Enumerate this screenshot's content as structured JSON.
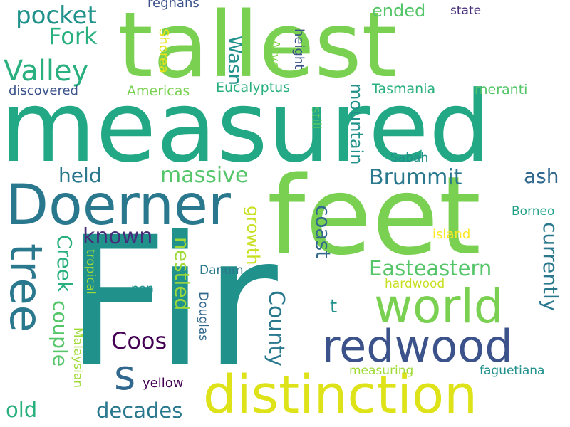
{
  "words": [
    {
      "text": "Fir",
      "color": "#21918c"
    },
    {
      "text": "measured",
      "color": "#22a884"
    },
    {
      "text": "feet",
      "color": "#7ad151"
    },
    {
      "text": "tallest",
      "color": "#7ad151"
    },
    {
      "text": "Doerner",
      "color": "#2a788e"
    },
    {
      "text": "distinction",
      "color": "#dde318"
    },
    {
      "text": "redwood",
      "color": "#3b528b"
    },
    {
      "text": "world",
      "color": "#7ad151"
    },
    {
      "text": "tree",
      "color": "#2a788e"
    },
    {
      "text": "Valley",
      "color": "#2ab07f"
    },
    {
      "text": "s",
      "color": "#31688e"
    },
    {
      "text": "pocket",
      "color": "#21918c"
    },
    {
      "text": "Fork",
      "color": "#2ab07f"
    },
    {
      "text": "massive",
      "color": "#54c568"
    },
    {
      "text": "held",
      "color": "#2a788e"
    },
    {
      "text": "Brummit",
      "color": "#2a788e"
    },
    {
      "text": "known",
      "color": "#472c7a"
    },
    {
      "text": "Easteastern",
      "color": "#54c568"
    },
    {
      "text": "Coos",
      "color": "#440154"
    },
    {
      "text": "decades",
      "color": "#2a788e"
    },
    {
      "text": "old",
      "color": "#2ab07f"
    },
    {
      "text": "ended",
      "color": "#54c568"
    },
    {
      "text": "ash",
      "color": "#31688e"
    },
    {
      "text": "County",
      "color": "#2a788e"
    },
    {
      "text": "coast",
      "color": "#31688e"
    },
    {
      "text": "currently",
      "color": "#2a788e"
    },
    {
      "text": "couple",
      "color": "#54c568"
    },
    {
      "text": "Creek",
      "color": "#2ab07f"
    },
    {
      "text": "nestled",
      "color": "#a0da39"
    },
    {
      "text": "growth",
      "color": "#c8e020"
    },
    {
      "text": "mountain",
      "color": "#21918c"
    },
    {
      "text": "Wasn",
      "color": "#21918c"
    },
    {
      "text": "t",
      "color": "#21918c"
    },
    {
      "text": "discovered",
      "color": "#3b528b"
    },
    {
      "text": "Americas",
      "color": "#7ad151"
    },
    {
      "text": "Eucalyptus",
      "color": "#2ab07f"
    },
    {
      "text": "Tasmania",
      "color": "#2ab07f"
    },
    {
      "text": "meranti",
      "color": "#54c568"
    },
    {
      "text": "state",
      "color": "#472c7a"
    },
    {
      "text": "regnans",
      "color": "#3b528b"
    },
    {
      "text": "Shorea",
      "color": "#e8e419"
    },
    {
      "text": "Arve",
      "color": "#86d549"
    },
    {
      "text": "height",
      "color": "#3b528b"
    },
    {
      "text": "still",
      "color": "#54c568"
    },
    {
      "text": "Sabah",
      "color": "#21918c"
    },
    {
      "text": "Borneo",
      "color": "#1fa088"
    },
    {
      "text": "island",
      "color": "#fde725"
    },
    {
      "text": "Danum",
      "color": "#2a788e"
    },
    {
      "text": "non",
      "color": "#21918c"
    },
    {
      "text": "hardwood",
      "color": "#c8e020"
    },
    {
      "text": "tropical",
      "color": "#a0da39"
    },
    {
      "text": "Malaysian",
      "color": "#a0da39"
    },
    {
      "text": "Douglas",
      "color": "#31688e"
    },
    {
      "text": "yellow",
      "color": "#440154"
    },
    {
      "text": "measuring",
      "color": "#a0da39"
    },
    {
      "text": "faguetiana",
      "color": "#21918c"
    }
  ]
}
